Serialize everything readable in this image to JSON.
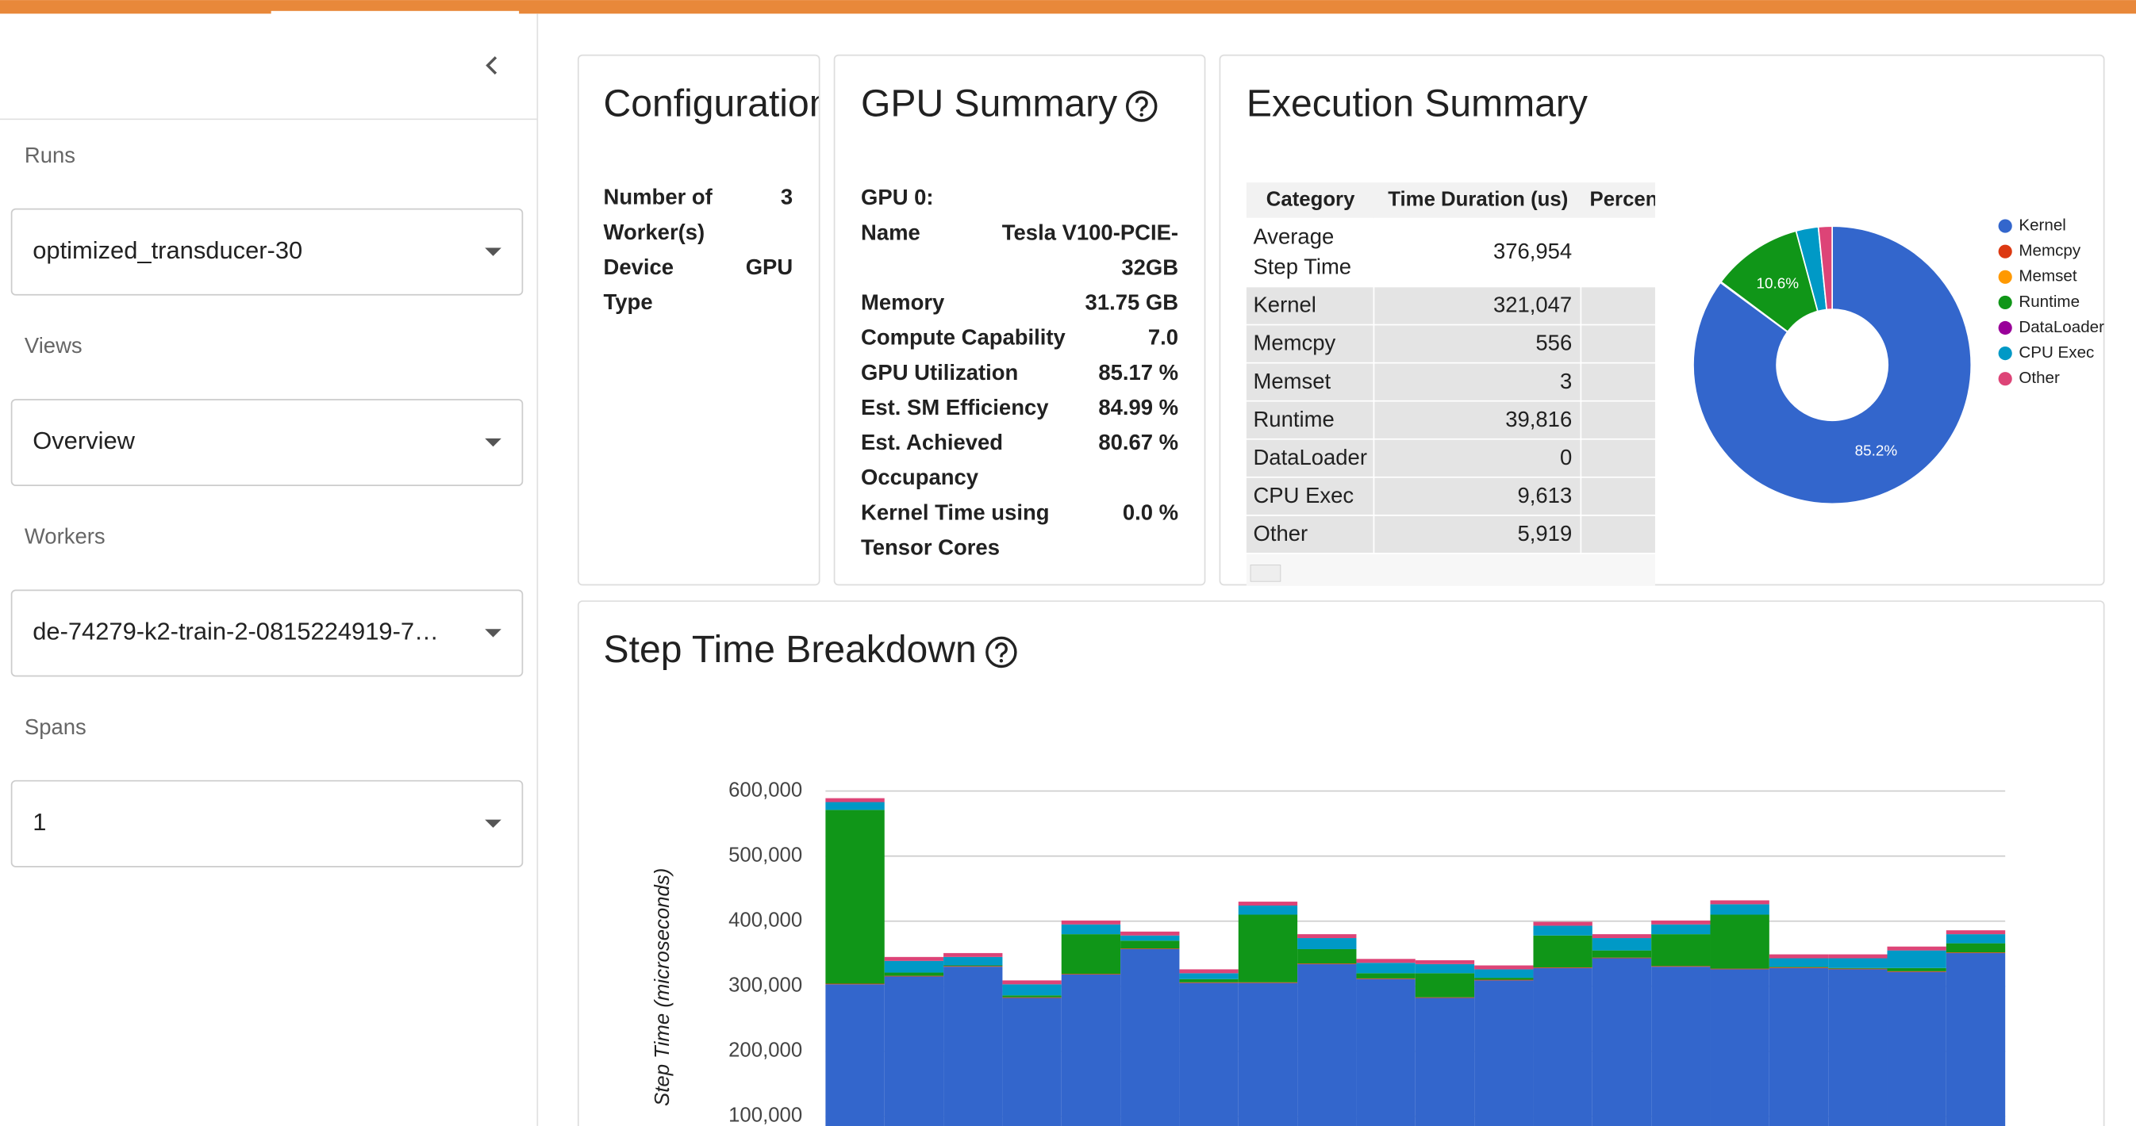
{
  "sidebar": {
    "fields": [
      {
        "label": "Runs",
        "value": "optimized_transducer-30"
      },
      {
        "label": "Views",
        "value": "Overview"
      },
      {
        "label": "Workers",
        "value": "de-74279-k2-train-2-0815224919-7…"
      },
      {
        "label": "Spans",
        "value": "1"
      }
    ]
  },
  "configuration": {
    "title": "Configuration",
    "rows": [
      {
        "label": "Number of Worker(s)",
        "value": "3"
      },
      {
        "label": "Device Type",
        "value": "GPU"
      }
    ]
  },
  "gpu_summary": {
    "title": "GPU Summary",
    "heading": "GPU 0:",
    "rows": [
      {
        "label": "Name",
        "value": "Tesla V100-PCIE-32GB"
      },
      {
        "label": "Memory",
        "value": "31.75 GB"
      },
      {
        "label": "Compute Capability",
        "value": "7.0"
      },
      {
        "label": "GPU Utilization",
        "value": "85.17 %"
      },
      {
        "label": "Est. SM Efficiency",
        "value": "84.99 %"
      },
      {
        "label": "Est. Achieved Occupancy",
        "value": "80.67 %"
      },
      {
        "label": "Kernel Time using Tensor Cores",
        "value": "0.0 %"
      }
    ]
  },
  "execution_summary": {
    "title": "Execution Summary",
    "table": {
      "headers": [
        "Category",
        "Time Duration (us)",
        "Percentage (%)"
      ],
      "rows": [
        [
          "Average Step Time",
          "376,954"
        ],
        [
          "Kernel",
          "321,047"
        ],
        [
          "Memcpy",
          "556"
        ],
        [
          "Memset",
          "3"
        ],
        [
          "Runtime",
          "39,816"
        ],
        [
          "DataLoader",
          "0"
        ],
        [
          "CPU Exec",
          "9,613"
        ],
        [
          "Other",
          "5,919"
        ]
      ]
    }
  },
  "chart_data": [
    {
      "type": "pie",
      "hole": 0.4,
      "legend": "right",
      "categories": [
        "Kernel",
        "Memcpy",
        "Memset",
        "Runtime",
        "DataLoader",
        "CPU Exec",
        "Other"
      ],
      "values": [
        85.2,
        0.1,
        0,
        10.6,
        0,
        2.6,
        1.6
      ],
      "value_labels": [
        "85.2%",
        null,
        null,
        "10.6%",
        null,
        null,
        null
      ],
      "colors": [
        "#3366cc",
        "#dc3912",
        "#ff9900",
        "#109618",
        "#990099",
        "#0099c6",
        "#dd4477"
      ]
    },
    {
      "type": "bar",
      "stacked": true,
      "title": "Step Time Breakdown",
      "y_label": "Step Time (microseconds)",
      "categories": [
        null,
        null,
        null,
        null,
        null,
        null,
        null,
        null,
        null,
        null,
        null,
        null,
        null,
        null,
        null,
        null,
        null,
        null,
        null,
        null
      ],
      "series": [
        {
          "name": "Kernel",
          "color": "#3366cc",
          "values": [
            303000,
            315000,
            330000,
            282000,
            318000,
            357000,
            305000,
            305000,
            334000,
            311000,
            282000,
            309000,
            328000,
            343000,
            330000,
            326000,
            328000,
            326000,
            322000,
            351000
          ]
        },
        {
          "name": "Memcpy",
          "color": "#dc3912",
          "values": [
            1000,
            1000,
            1000,
            1000,
            1000,
            1000,
            1000,
            1000,
            1000,
            1000,
            1000,
            1000,
            1000,
            1000,
            1000,
            1000,
            1000,
            1000,
            1000,
            1000
          ]
        },
        {
          "name": "Memset",
          "color": "#ff9900",
          "values": [
            0,
            0,
            0,
            0,
            0,
            0,
            0,
            0,
            0,
            0,
            0,
            0,
            0,
            0,
            0,
            0,
            0,
            0,
            0,
            0
          ]
        },
        {
          "name": "Runtime",
          "color": "#109618",
          "values": [
            267000,
            5000,
            1000,
            3000,
            61000,
            12000,
            5000,
            104000,
            22000,
            8000,
            37000,
            3000,
            49000,
            11000,
            49000,
            83000,
            1000,
            1000,
            5000,
            14000
          ]
        },
        {
          "name": "DataLoader",
          "color": "#990099",
          "values": [
            0,
            0,
            0,
            0,
            0,
            0,
            0,
            0,
            0,
            0,
            0,
            0,
            0,
            0,
            0,
            0,
            0,
            0,
            0,
            0
          ]
        },
        {
          "name": "CPU Exec",
          "color": "#0099c6",
          "values": [
            12000,
            18000,
            13000,
            17000,
            15000,
            8000,
            9000,
            14000,
            17000,
            16000,
            14000,
            13000,
            15000,
            19000,
            15000,
            16000,
            13000,
            15000,
            27000,
            14000
          ]
        },
        {
          "name": "Other",
          "color": "#dd4477",
          "values": [
            6000,
            6000,
            6000,
            6000,
            6000,
            6000,
            6000,
            6000,
            6000,
            6000,
            6000,
            6000,
            6000,
            6000,
            6000,
            6000,
            6000,
            6000,
            6000,
            6000
          ]
        }
      ],
      "ylim": [
        0,
        600000
      ],
      "yticks": [
        {
          "value": 100000,
          "label": "100,000"
        },
        {
          "value": 200000,
          "label": "200,000"
        },
        {
          "value": 300000,
          "label": "300,000"
        },
        {
          "value": 400000,
          "label": "400,000"
        },
        {
          "value": 500000,
          "label": "500,000"
        },
        {
          "value": 600000,
          "label": "600,000"
        }
      ],
      "grid": true
    }
  ]
}
